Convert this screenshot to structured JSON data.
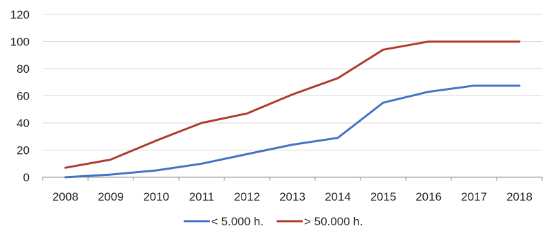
{
  "chart_data": {
    "type": "line",
    "x": [
      "2008",
      "2009",
      "2010",
      "2011",
      "2012",
      "2013",
      "2014",
      "2015",
      "2016",
      "2017",
      "2018"
    ],
    "series": [
      {
        "name": "< 5.000 h.",
        "color": "#4472c4",
        "values": [
          0,
          2,
          5,
          10,
          17,
          24,
          29,
          55,
          63,
          67.5,
          67.5
        ]
      },
      {
        "name": "> 50.000 h.",
        "color": "#b03a2e",
        "values": [
          7,
          13,
          27,
          40,
          47,
          61,
          73,
          94,
          100,
          100,
          100
        ]
      }
    ],
    "ylim": [
      0,
      120
    ],
    "yticks": [
      "0",
      "20",
      "40",
      "60",
      "80",
      "100",
      "120"
    ],
    "grid": true,
    "legend_position": "bottom",
    "title": "",
    "xlabel": "",
    "ylabel": ""
  }
}
